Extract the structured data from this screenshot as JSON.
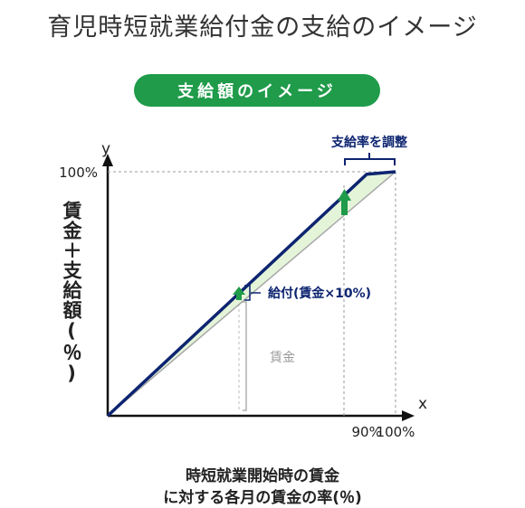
{
  "title": "育児時短就業給付金の支給のイメージ",
  "badge": "支給額のイメージ",
  "y_axis_title": "賃金＋支給額(％)",
  "x_caption_line1": "時短就業開始時の賃金",
  "x_caption_line2": "に対する各月の賃金の率(％)",
  "annotations": {
    "adjust_rate": "支給率を調整",
    "benefit": "給付(賃金×10%)",
    "wage": "賃金"
  },
  "colors": {
    "navy": "#0d2470",
    "green": "#1f9b4a",
    "fill": "#e4f4d9",
    "grey": "#a0a0a0"
  },
  "chart_data": {
    "type": "line",
    "x_axis_label": "x",
    "y_axis_label": "y",
    "xlim": [
      0,
      100
    ],
    "ylim": [
      0,
      100
    ],
    "x_ticks": [
      {
        "value": 90,
        "label": "90%"
      },
      {
        "value": 100,
        "label": "100%"
      }
    ],
    "y_ticks": [
      {
        "value": 100,
        "label": "100%"
      }
    ],
    "series": [
      {
        "x": [
          0,
          90,
          100
        ],
        "y": [
          0,
          99,
          100
        ]
      },
      {
        "x": [
          0,
          100
        ],
        "y": [
          0,
          100
        ]
      }
    ]
  }
}
